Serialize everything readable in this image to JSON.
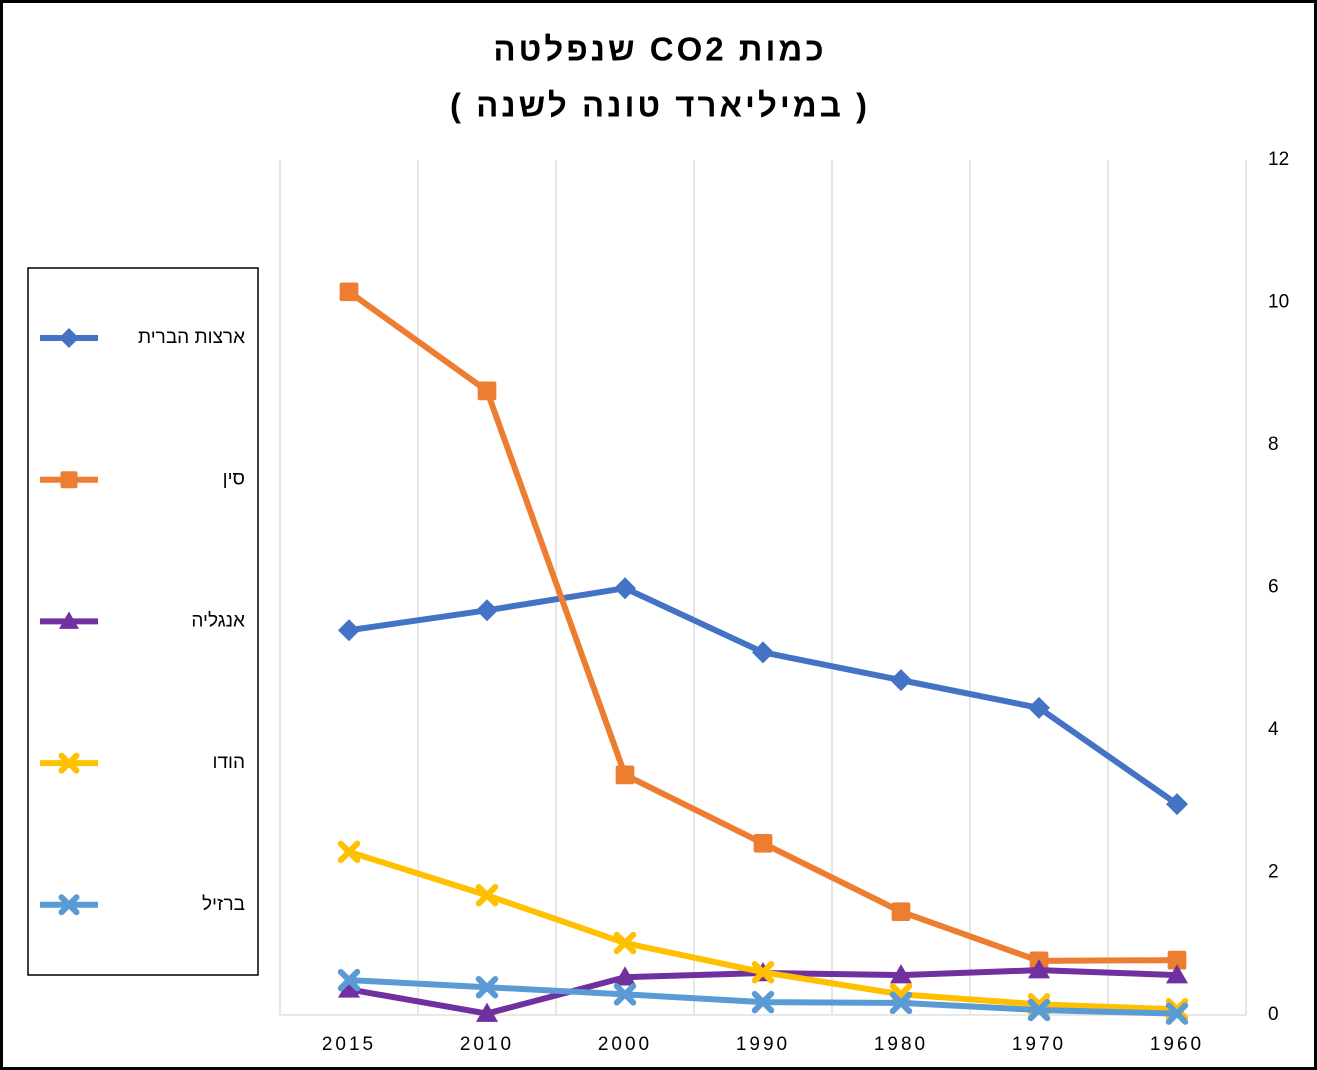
{
  "chart_data": {
    "type": "line",
    "title": "כמות  CO2 שנפלטה",
    "subtitle": "( במיליארד טונה לשנה )",
    "categories": [
      "2015",
      "2010",
      "2000",
      "1990",
      "1980",
      "1970",
      "1960"
    ],
    "series": [
      {
        "name": "ארצות הברית",
        "color": "#4472c4",
        "marker": "diamond",
        "values": [
          5.4,
          5.68,
          5.99,
          5.09,
          4.7,
          4.31,
          2.96
        ]
      },
      {
        "name": "סין",
        "color": "#ed7d31",
        "marker": "square",
        "values": [
          10.15,
          8.76,
          3.37,
          2.41,
          1.45,
          0.76,
          0.77
        ]
      },
      {
        "name": "אנגליה",
        "color": "#7030a0",
        "marker": "triangle",
        "values": [
          0.36,
          0.02,
          0.53,
          0.59,
          0.56,
          0.63,
          0.56
        ]
      },
      {
        "name": "הודו",
        "color": "#ffc000",
        "marker": "x",
        "values": [
          2.29,
          1.68,
          1.01,
          0.6,
          0.29,
          0.15,
          0.08
        ]
      },
      {
        "name": "ברזיל",
        "color": "#5b9bd5",
        "marker": "x",
        "values": [
          0.49,
          0.39,
          0.29,
          0.18,
          0.17,
          0.07,
          0.02
        ]
      }
    ],
    "ylim": [
      0,
      12
    ],
    "yticks": [
      0,
      2,
      4,
      6,
      8,
      10,
      12
    ],
    "y_axis_side": "right",
    "grid": "vertical",
    "legend": "left"
  }
}
